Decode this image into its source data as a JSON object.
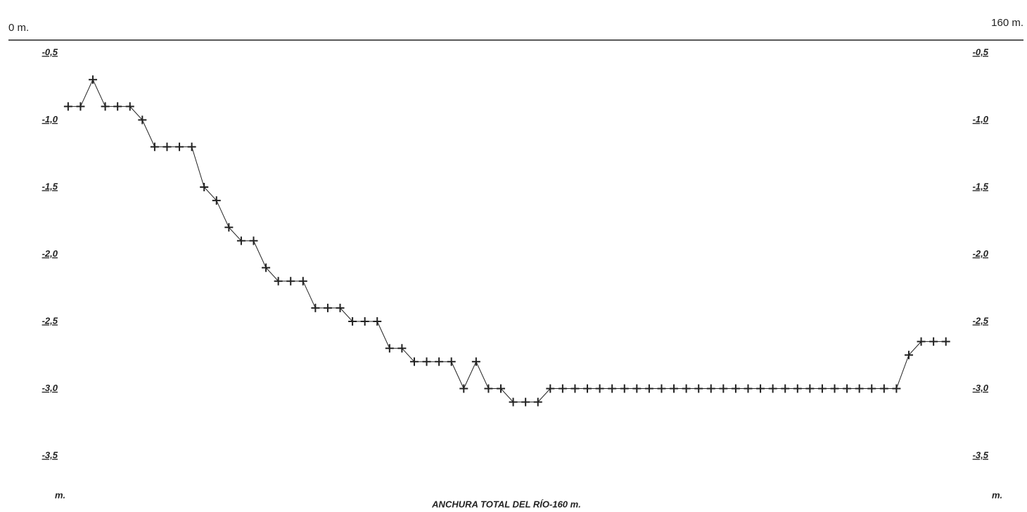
{
  "chart_data": {
    "type": "line",
    "title": "ANCHURA TOTAL DEL RÍO-160 m.",
    "top_left_label": "0 m.",
    "top_right_label": "160 m.",
    "bottom_left_label": "m.",
    "bottom_right_label": "m.",
    "x": [
      10,
      12,
      14,
      16,
      18,
      20,
      22,
      24,
      26,
      28,
      30,
      32,
      34,
      36,
      38,
      40,
      42,
      44,
      46,
      48,
      50,
      52,
      54,
      56,
      58,
      60,
      62,
      64,
      66,
      68,
      70,
      72,
      74,
      76,
      78,
      80,
      82,
      84,
      86,
      88,
      90,
      92,
      94,
      96,
      98,
      100,
      102,
      104,
      106,
      108,
      110,
      112,
      114,
      116,
      118,
      120,
      122,
      124,
      126,
      128,
      130,
      132,
      134,
      136,
      138,
      140,
      142,
      144,
      146,
      148,
      150,
      152
    ],
    "values": [
      -0.9,
      -0.9,
      -0.7,
      -0.9,
      -0.9,
      -0.9,
      -1.0,
      -1.2,
      -1.2,
      -1.2,
      -1.2,
      -1.5,
      -1.6,
      -1.8,
      -1.9,
      -1.9,
      -2.1,
      -2.2,
      -2.2,
      -2.2,
      -2.4,
      -2.4,
      -2.4,
      -2.5,
      -2.5,
      -2.5,
      -2.7,
      -2.7,
      -2.8,
      -2.8,
      -2.8,
      -2.8,
      -3.0,
      -2.8,
      -3.0,
      -3.0,
      -3.1,
      -3.1,
      -3.1,
      -3.0,
      -3.0,
      -3.0,
      -3.0,
      -3.0,
      -3.0,
      -3.0,
      -3.0,
      -3.0,
      -3.0,
      -3.0,
      -3.0,
      -3.0,
      -3.0,
      -3.0,
      -3.0,
      -3.0,
      -3.0,
      -3.0,
      -3.0,
      -3.0,
      -3.0,
      -3.0,
      -3.0,
      -3.0,
      -3.0,
      -3.0,
      -3.0,
      -3.0,
      -2.75,
      -2.65,
      -2.65,
      -2.65
    ],
    "color": "#222222",
    "xlim": [
      0,
      160
    ],
    "ylim": [
      -3.5,
      -0.5
    ],
    "yticks": [
      {
        "value": -0.5,
        "label": "-0,5"
      },
      {
        "value": -1.0,
        "label": "-1,0"
      },
      {
        "value": -1.5,
        "label": "-1,5"
      },
      {
        "value": -2.0,
        "label": "-2,0"
      },
      {
        "value": -2.5,
        "label": "-2,5"
      },
      {
        "value": -3.0,
        "label": "-3,0"
      },
      {
        "value": -3.5,
        "label": "-3,5"
      }
    ]
  }
}
